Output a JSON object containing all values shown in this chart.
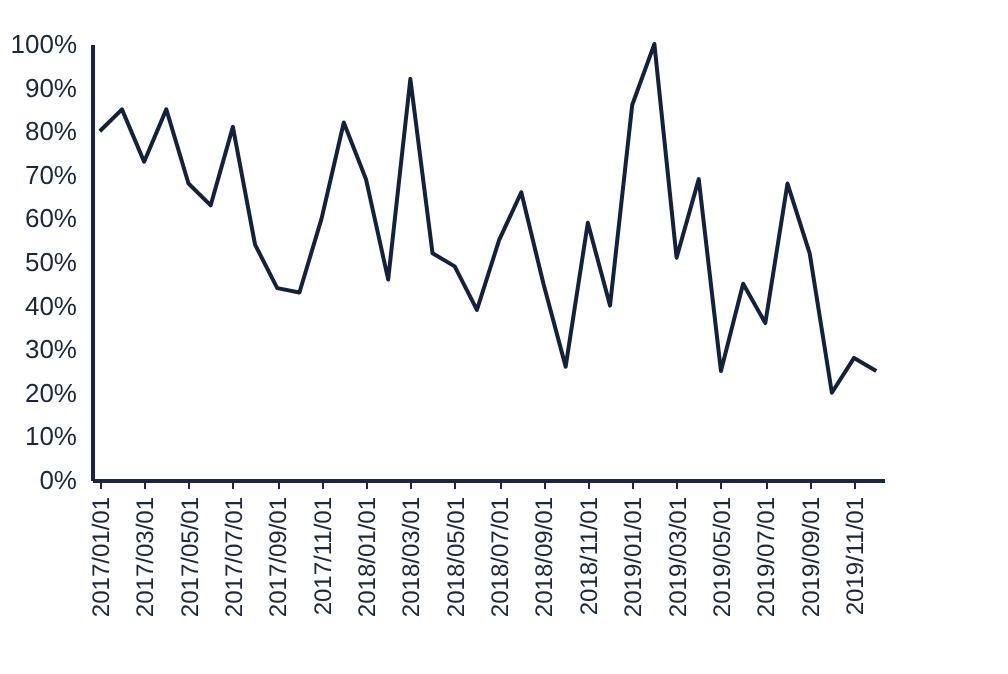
{
  "chart_data": {
    "type": "line",
    "categories": [
      "2017/01/01",
      null,
      "2017/03/01",
      null,
      "2017/05/01",
      null,
      "2017/07/01",
      null,
      "2017/09/01",
      null,
      "2017/11/01",
      null,
      "2018/01/01",
      null,
      "2018/03/01",
      null,
      "2018/05/01",
      null,
      "2018/07/01",
      null,
      "2018/09/01",
      null,
      "2018/11/01",
      null,
      "2019/01/01",
      null,
      "2019/03/01",
      null,
      "2019/05/01",
      null,
      "2019/07/01",
      null,
      "2019/09/01",
      null,
      "2019/11/01",
      null
    ],
    "series": [
      {
        "color": "#14213d",
        "values": [
          80,
          85,
          73,
          85,
          68,
          63,
          81,
          54,
          44,
          43,
          60,
          82,
          69,
          46,
          92,
          52,
          49,
          39,
          55,
          66,
          45,
          26,
          59,
          40,
          86,
          100,
          51,
          69,
          25,
          45,
          36,
          68,
          52,
          20,
          28,
          25
        ]
      }
    ],
    "ylim": [
      0,
      100
    ],
    "yticks": [
      {
        "value": 0,
        "label": "0%"
      },
      {
        "value": 10,
        "label": "10%"
      },
      {
        "value": 20,
        "label": "20%"
      },
      {
        "value": 30,
        "label": "30%"
      },
      {
        "value": 40,
        "label": "40%"
      },
      {
        "value": 50,
        "label": "50%"
      },
      {
        "value": 60,
        "label": "60%"
      },
      {
        "value": 70,
        "label": "70%"
      },
      {
        "value": 80,
        "label": "80%"
      },
      {
        "value": 90,
        "label": "90%"
      },
      {
        "value": 100,
        "label": "100%"
      }
    ],
    "grid": false,
    "marker": "none",
    "line_style": "solid"
  }
}
